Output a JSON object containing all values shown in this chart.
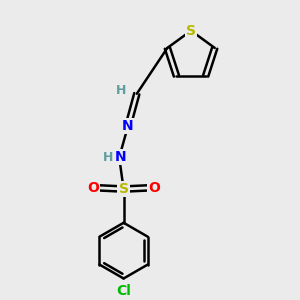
{
  "background_color": "#ebebeb",
  "bond_color": "#000000",
  "bond_width": 1.8,
  "atom_colors": {
    "S_thiophene": "#b8b800",
    "S_sulfonyl": "#b8b800",
    "N": "#0000ff",
    "O": "#ff0000",
    "Cl": "#00bb00",
    "H": "#5f9ea0"
  },
  "font_size_atoms": 10,
  "font_size_h": 9,
  "font_size_cl": 10
}
